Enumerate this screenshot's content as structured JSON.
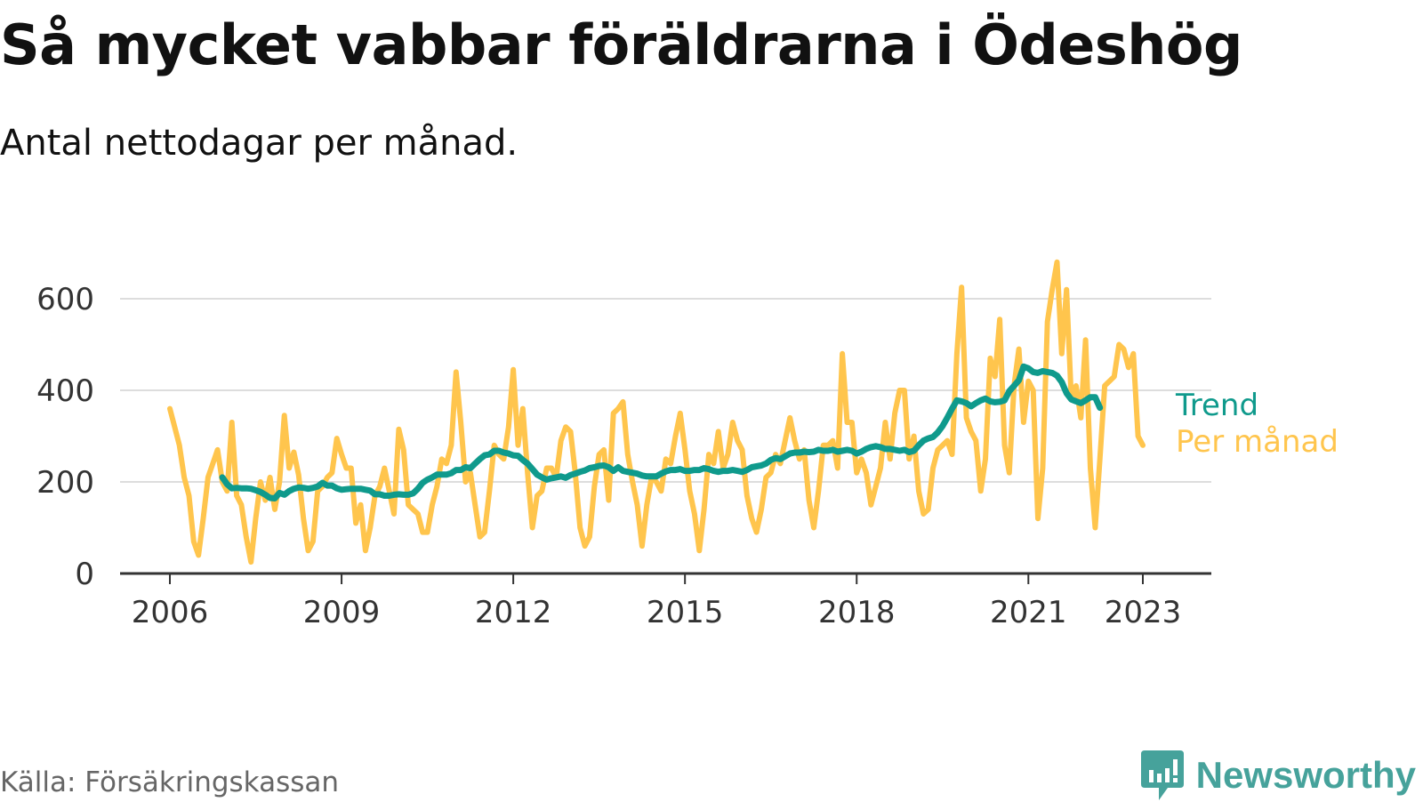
{
  "header": {
    "title": "Så mycket vabbar föräldrarna i Ödeshög",
    "subtitle": "Antal nettodagar per månad."
  },
  "footer": {
    "source": "Källa: Försäkringskassan",
    "brand": "Newsworthy"
  },
  "colors": {
    "trend": "#0f9a8c",
    "monthly": "#ffc54d",
    "grid": "#dddddd",
    "axis": "#333333",
    "brand": "#46a29b"
  },
  "chart_data": {
    "type": "line",
    "ylim": [
      0,
      700
    ],
    "y_ticks": [
      0,
      200,
      400,
      600
    ],
    "x_ticks": [
      2006,
      2009,
      2012,
      2015,
      2018,
      2021,
      2023
    ],
    "x_tick_labels": [
      "2006",
      "2009",
      "2012",
      "2015",
      "2018",
      "2021",
      "2023"
    ],
    "x_start": "2006-01",
    "x_end": "2023-05",
    "grid": true,
    "legend": "end-of-line labels",
    "series": [
      {
        "name": "Per månad",
        "values": [
          360,
          320,
          280,
          210,
          170,
          70,
          40,
          120,
          210,
          240,
          270,
          200,
          180,
          330,
          170,
          150,
          80,
          25,
          120,
          200,
          160,
          210,
          140,
          200,
          345,
          230,
          265,
          215,
          120,
          50,
          70,
          180,
          190,
          210,
          220,
          295,
          260,
          230,
          230,
          110,
          150,
          50,
          100,
          170,
          190,
          230,
          180,
          130,
          315,
          270,
          150,
          140,
          130,
          90,
          90,
          150,
          190,
          250,
          240,
          280,
          440,
          330,
          200,
          220,
          150,
          80,
          90,
          180,
          280,
          260,
          250,
          320,
          445,
          280,
          360,
          220,
          100,
          170,
          180,
          230,
          230,
          210,
          290,
          320,
          310,
          220,
          100,
          60,
          80,
          190,
          260,
          270,
          160,
          350,
          360,
          375,
          260,
          200,
          150,
          60,
          150,
          210,
          200,
          180,
          250,
          240,
          300,
          350,
          270,
          180,
          130,
          50,
          140,
          260,
          240,
          310,
          230,
          260,
          330,
          290,
          270,
          170,
          120,
          90,
          140,
          210,
          220,
          260,
          240,
          290,
          340,
          290,
          250,
          270,
          160,
          100,
          180,
          280,
          280,
          290,
          230,
          480,
          330,
          330,
          220,
          250,
          220,
          150,
          190,
          230,
          330,
          250,
          350,
          400,
          400,
          250,
          300,
          180,
          130,
          140,
          230,
          270,
          280,
          290,
          260,
          480,
          625,
          340,
          310,
          290,
          180,
          250,
          470,
          430,
          555,
          280,
          220,
          410,
          490,
          330,
          420,
          400,
          120,
          230,
          550,
          620,
          680,
          480,
          620,
          380,
          410,
          340,
          510,
          230,
          100,
          250,
          410,
          420,
          430,
          500,
          490,
          450,
          480,
          300,
          280
        ],
        "color": "#ffc54d"
      },
      {
        "name": "Trend",
        "start": "2006-12",
        "values": [
          210,
          195,
          186,
          187,
          186,
          186,
          185,
          182,
          178,
          172,
          165,
          164,
          176,
          172,
          180,
          185,
          188,
          187,
          185,
          187,
          190,
          198,
          192,
          192,
          186,
          183,
          184,
          185,
          185,
          185,
          183,
          181,
          173,
          173,
          170,
          170,
          172,
          173,
          172,
          172,
          175,
          185,
          198,
          205,
          210,
          216,
          216,
          216,
          219,
          226,
          226,
          232,
          230,
          240,
          250,
          258,
          260,
          268,
          268,
          264,
          262,
          258,
          257,
          248,
          240,
          228,
          216,
          210,
          205,
          208,
          210,
          212,
          209,
          215,
          218,
          222,
          225,
          230,
          232,
          235,
          236,
          232,
          224,
          232,
          224,
          222,
          220,
          218,
          214,
          212,
          212,
          212,
          218,
          223,
          226,
          226,
          228,
          224,
          224,
          226,
          226,
          230,
          228,
          224,
          222,
          224,
          224,
          226,
          224,
          222,
          226,
          232,
          234,
          236,
          240,
          248,
          252,
          250,
          256,
          262,
          264,
          264,
          266,
          265,
          266,
          270,
          268,
          268,
          270,
          266,
          268,
          270,
          268,
          262,
          266,
          272,
          276,
          278,
          276,
          272,
          272,
          270,
          268,
          270,
          265,
          268,
          280,
          290,
          295,
          298,
          308,
          322,
          340,
          360,
          378,
          376,
          372,
          365,
          372,
          378,
          382,
          376,
          374,
          375,
          378,
          398,
          410,
          422,
          452,
          448,
          440,
          438,
          442,
          440,
          438,
          432,
          418,
          394,
          380,
          376,
          372,
          378,
          385,
          385,
          362
        ]
      }
    ]
  }
}
